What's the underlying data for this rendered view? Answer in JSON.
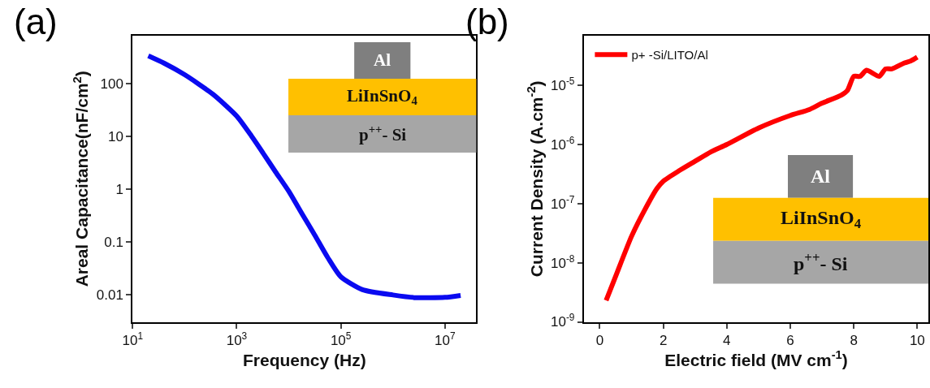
{
  "chart_data": [
    {
      "type": "line",
      "title": "(a)",
      "xlabel": "Frequency (Hz)",
      "ylabel": "Areal Capacitance(nF/cm$^{2}$)",
      "log": "xy",
      "x": [
        20,
        40,
        100,
        350,
        1000,
        1800,
        3200,
        5600,
        10000,
        18000,
        31600,
        56000,
        100000,
        260000,
        1000000,
        2700000,
        10000000,
        20000000
      ],
      "series": [
        {
          "color": "#0a0af0",
          "values": [
            330,
            240,
            145,
            62,
            24,
            11,
            4.8,
            2.1,
            0.91,
            0.34,
            0.135,
            0.051,
            0.022,
            0.0126,
            0.01,
            0.0089,
            0.009,
            0.0098
          ]
        }
      ],
      "xlim": [
        10,
        40000000
      ],
      "ylim": [
        0.0031,
        790
      ],
      "xticks": [
        {
          "value": 10,
          "label": "10$^{1}$"
        },
        {
          "value": 1000,
          "label": "10$^{3}$"
        },
        {
          "value": 100000,
          "label": "10$^{5}$"
        },
        {
          "value": 10000000,
          "label": "10$^{7}$"
        }
      ],
      "yticks": [
        0.01,
        0.1,
        1,
        10,
        100
      ],
      "annotations": [
        "Al",
        "LiInSnO$_{4}$",
        "p$^{++}$- Si"
      ]
    },
    {
      "type": "line",
      "title": "(b)",
      "xlabel": "Electric field (MV cm$^{-1}$)",
      "ylabel": "Current Density (A.cm$^{-2}$)",
      "log": "y",
      "legend": "top left",
      "x": [
        0.2,
        0.5,
        1,
        1.5,
        1.8,
        2,
        2.5,
        3,
        3.5,
        4,
        5,
        6,
        6.6,
        7,
        7.6,
        7.8,
        8,
        8.2,
        8.4,
        8.8,
        9,
        9.2,
        9.6,
        9.8,
        10
      ],
      "series": [
        {
          "name": "p+ -Si/LITO/Al",
          "color": "#ff0000",
          "values": [
            2.3e-09,
            5.9e-09,
            2.8e-08,
            9.5e-08,
            1.8e-07,
            2.4e-07,
            3.6e-07,
            5.2e-07,
            7.5e-07,
            1e-06,
            1.9e-06,
            3.1e-06,
            3.9e-06,
            5e-06,
            6.8e-06,
            8.2e-06,
            1.42e-05,
            1.42e-05,
            1.8e-05,
            1.42e-05,
            1.9e-05,
            1.9e-05,
            2.4e-05,
            2.6e-05,
            3e-05
          ]
        }
      ],
      "xlim": [
        -0.5,
        10.35
      ],
      "ylim": [
        1e-09,
        6.9e-05
      ],
      "xticks": [
        0,
        2,
        4,
        6,
        8,
        10
      ],
      "yticks": [
        {
          "value": 1e-09,
          "label": "10$^{-9}$"
        },
        {
          "value": 1e-08,
          "label": "10$^{-8}$"
        },
        {
          "value": 1e-07,
          "label": "10$^{-7}$"
        },
        {
          "value": 1e-06,
          "label": "10$^{-6}$"
        },
        {
          "value": 1e-05,
          "label": "10$^{-5}$"
        }
      ],
      "annotations": [
        "Al",
        "LiInSnO$_{4}$",
        "p$^{++}$- Si"
      ]
    }
  ]
}
